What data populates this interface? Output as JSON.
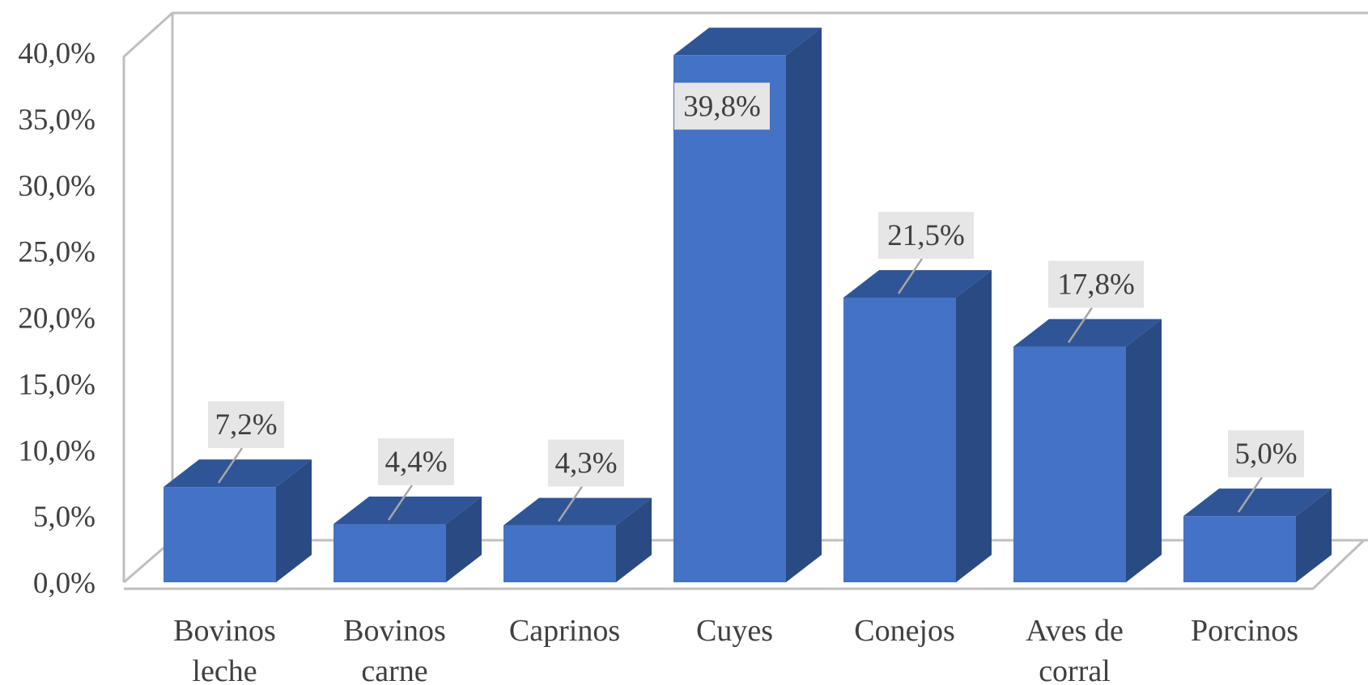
{
  "chart_data": {
    "type": "bar",
    "style": "3d-column",
    "categories": [
      [
        "Bovinos",
        "leche"
      ],
      [
        "Bovinos",
        "carne"
      ],
      [
        "Caprinos"
      ],
      [
        "Cuyes"
      ],
      [
        "Conejos"
      ],
      [
        "Aves de",
        "corral"
      ],
      [
        "Porcinos"
      ]
    ],
    "values": [
      7.2,
      4.4,
      4.3,
      39.8,
      21.5,
      17.8,
      5.0
    ],
    "data_labels": [
      "7,2%",
      "4,4%",
      "4,3%",
      "39,8%",
      "21,5%",
      "17,8%",
      "5,0%"
    ],
    "yticks": [
      "0,0%",
      "5,0%",
      "10,0%",
      "15,0%",
      "20,0%",
      "25,0%",
      "30,0%",
      "35,0%",
      "40,0%"
    ],
    "ylim": [
      0,
      40
    ],
    "title": "",
    "xlabel": "",
    "ylabel": "",
    "grid": false,
    "legend": false,
    "colors": {
      "bar_front": "#4472C4",
      "bar_top": "#2F5597",
      "bar_side": "#2A4A84",
      "label_box": "#E6E6E6",
      "axis": "#BFBFBF",
      "text": "#404040"
    }
  }
}
